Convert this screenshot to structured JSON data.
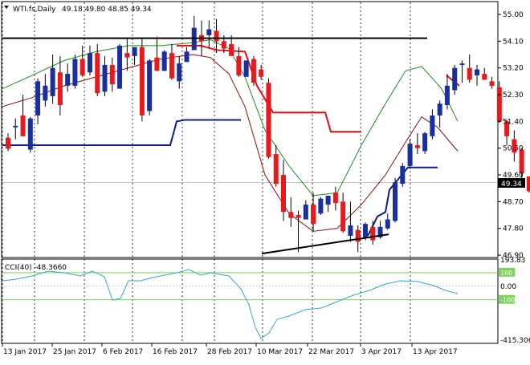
{
  "window": {
    "symbol_label": "WTI.fs,Daily",
    "ohlc_label": "49.18 49.80 48.85 49.34",
    "menu_icon": "triangle-down-icon"
  },
  "price_axis": {
    "ticks": [
      "55.00",
      "54.10",
      "53.20",
      "52.30",
      "51.40",
      "50.50",
      "49.60",
      "48.70",
      "47.80",
      "46.90"
    ],
    "current_price_label": "49.34"
  },
  "cci_panel": {
    "title": "CCI(40) -48.3660",
    "axis_labels": [
      "193.83",
      "100",
      "0.00",
      "-100",
      "-415.306"
    ]
  },
  "date_axis": [
    "13 Jan 2017",
    "25 Jan 2017",
    "6 Feb 2017",
    "16 Feb 2017",
    "28 Feb 2017",
    "10 Mar 2017",
    "22 Mar 2017",
    "3 Apr 2017",
    "13 Apr 2017"
  ],
  "colors": {
    "bull_candle": "#1a2f9e",
    "bear_candle": "#e8191d",
    "ma_green": "#1e8a1e",
    "ma_darkred": "#8b1010",
    "stop_red": "#e01010",
    "stop_blue": "#0b1f86",
    "cci_line": "#3aa6c8",
    "cci_band": "#7cd25a"
  },
  "chart_data": {
    "type": "candlestick",
    "candles": [
      [
        50.85,
        51.0,
        50.4,
        50.48
      ],
      [
        51.2,
        51.5,
        50.8,
        51.25
      ],
      [
        51.6,
        52.3,
        50.9,
        50.9
      ],
      [
        50.45,
        51.55,
        50.35,
        51.5
      ],
      [
        51.6,
        52.85,
        51.3,
        52.75
      ],
      [
        52.1,
        53.0,
        51.9,
        52.6
      ],
      [
        52.25,
        53.65,
        52.0,
        53.2
      ],
      [
        53.05,
        53.6,
        51.6,
        51.95
      ],
      [
        52.6,
        53.35,
        52.4,
        53.0
      ],
      [
        52.6,
        53.65,
        52.5,
        53.5
      ],
      [
        53.5,
        53.95,
        52.9,
        52.95
      ],
      [
        53.05,
        53.95,
        52.95,
        53.7
      ],
      [
        53.7,
        54.0,
        52.25,
        52.35
      ],
      [
        52.4,
        53.6,
        52.25,
        53.3
      ],
      [
        53.3,
        53.55,
        52.4,
        52.65
      ],
      [
        52.5,
        54.0,
        52.5,
        53.95
      ],
      [
        53.7,
        54.2,
        53.1,
        53.55
      ],
      [
        53.6,
        53.9,
        53.3,
        53.9
      ],
      [
        53.9,
        54.2,
        51.4,
        51.6
      ],
      [
        51.75,
        53.5,
        51.6,
        53.45
      ],
      [
        53.55,
        54.25,
        53.1,
        53.1
      ],
      [
        53.1,
        53.8,
        53.1,
        53.75
      ],
      [
        53.7,
        54.0,
        52.8,
        52.85
      ],
      [
        52.75,
        53.6,
        52.5,
        53.35
      ],
      [
        53.4,
        53.9,
        53.4,
        53.75
      ],
      [
        53.8,
        54.95,
        53.8,
        54.55
      ],
      [
        54.3,
        54.8,
        53.6,
        54.1
      ],
      [
        54.3,
        54.8,
        53.85,
        54.5
      ],
      [
        54.45,
        54.85,
        53.7,
        54.1
      ],
      [
        54.1,
        54.3,
        53.7,
        53.85
      ],
      [
        54.0,
        54.3,
        53.6,
        53.6
      ],
      [
        53.6,
        53.9,
        52.9,
        52.95
      ],
      [
        52.9,
        53.45,
        52.9,
        53.45
      ],
      [
        53.5,
        53.6,
        52.6,
        52.7
      ],
      [
        53.15,
        53.3,
        52.8,
        52.9
      ],
      [
        52.7,
        52.85,
        50.15,
        50.2
      ],
      [
        50.3,
        50.6,
        49.2,
        49.3
      ],
      [
        49.6,
        50.1,
        48.05,
        48.35
      ],
      [
        48.35,
        48.85,
        47.85,
        48.15
      ],
      [
        48.25,
        48.4,
        47.0,
        48.15
      ],
      [
        48.1,
        48.75,
        48.1,
        48.6
      ],
      [
        48.6,
        49.0,
        47.7,
        47.95
      ],
      [
        48.3,
        48.85,
        48.25,
        48.8
      ],
      [
        48.6,
        48.9,
        48.35,
        48.9
      ],
      [
        49.0,
        49.2,
        48.4,
        48.65
      ],
      [
        48.7,
        49.0,
        47.65,
        47.7
      ],
      [
        47.55,
        48.7,
        47.35,
        47.9
      ],
      [
        47.75,
        47.9,
        47.0,
        47.35
      ],
      [
        47.5,
        48.0,
        47.4,
        47.95
      ],
      [
        47.85,
        48.05,
        47.25,
        47.4
      ],
      [
        47.5,
        48.05,
        47.45,
        47.85
      ],
      [
        47.8,
        48.3,
        47.75,
        48.1
      ],
      [
        48.05,
        49.5,
        48.0,
        49.35
      ],
      [
        49.3,
        50.0,
        49.2,
        49.9
      ],
      [
        49.9,
        50.8,
        49.8,
        50.65
      ],
      [
        50.6,
        51.0,
        50.3,
        50.5
      ],
      [
        50.4,
        51.05,
        50.3,
        51.0
      ],
      [
        50.9,
        51.8,
        50.8,
        51.6
      ],
      [
        51.6,
        52.1,
        51.2,
        52.0
      ],
      [
        51.95,
        53.0,
        51.8,
        52.6
      ],
      [
        52.45,
        53.3,
        52.3,
        53.2
      ],
      [
        53.3,
        53.45,
        52.7,
        53.35
      ],
      [
        53.2,
        53.65,
        52.7,
        52.8
      ],
      [
        52.95,
        53.3,
        52.6,
        53.15
      ],
      [
        53.0,
        53.2,
        52.8,
        52.8
      ],
      [
        52.75,
        52.9,
        52.5,
        52.6
      ],
      [
        52.55,
        52.75,
        51.35,
        51.4
      ],
      [
        51.4,
        51.45,
        50.6,
        50.9
      ],
      [
        50.8,
        51.1,
        50.05,
        50.35
      ],
      [
        50.45,
        50.5,
        49.45,
        49.65
      ],
      [
        49.55,
        49.55,
        49.0,
        49.05
      ],
      [
        49.18,
        49.8,
        48.85,
        49.34
      ]
    ],
    "resistance_line": 54.2,
    "support_trendline": [
      [
        46.95,
        48.8
      ],
      [
        47.6,
        53.2
      ]
    ],
    "cci_ylim": [
      -415.306,
      193.83
    ]
  }
}
